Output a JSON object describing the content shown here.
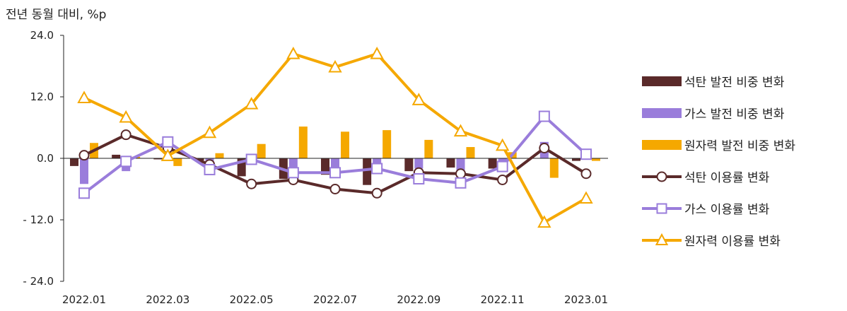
{
  "chart_data": {
    "type": "bar+line",
    "ylabel": "전년 동월 대비, %p",
    "ylim": [
      -24,
      24
    ],
    "yticks": [
      "24.0",
      "12.0",
      "0.0",
      "- 12.0",
      "- 24.0"
    ],
    "ytick_values": [
      24,
      12,
      0,
      -12,
      -24
    ],
    "categories": [
      "2022.01",
      "2022.02",
      "2022.03",
      "2022.04",
      "2022.05",
      "2022.06",
      "2022.07",
      "2022.08",
      "2022.09",
      "2022.10",
      "2022.11",
      "2022.12",
      "2023.01"
    ],
    "xtick_labels": [
      "2022.01",
      "",
      "2022.03",
      "",
      "2022.05",
      "",
      "2022.07",
      "",
      "2022.09",
      "",
      "2022.11",
      "",
      "2023.01"
    ],
    "bar_series": [
      {
        "name": "석탄 발전 비중 변화",
        "color": "#5a2a2a",
        "values": [
          -1.5,
          0.7,
          -0.2,
          -0.4,
          -3.5,
          -4.0,
          -3.2,
          -5.2,
          -2.5,
          -1.8,
          -2.0,
          0.0,
          -0.5
        ]
      },
      {
        "name": "가스 발전 비중 변화",
        "color": "#9a7ddb",
        "values": [
          -5.0,
          -2.5,
          0.3,
          -2.0,
          -1.2,
          -1.8,
          -2.2,
          -2.0,
          -2.0,
          -3.0,
          -0.6,
          3.2,
          0.4
        ]
      },
      {
        "name": "원자력 발전 비중 변화",
        "color": "#f5a800",
        "values": [
          3.0,
          0.3,
          -1.5,
          1.0,
          2.8,
          6.2,
          5.2,
          5.5,
          3.6,
          2.2,
          1.2,
          -3.8,
          -0.5
        ]
      }
    ],
    "line_series": [
      {
        "name": "석탄 이용률 변화",
        "color": "#5a2a2a",
        "marker": "circle",
        "values": [
          0.6,
          4.6,
          2.0,
          -1.2,
          -5.0,
          -4.2,
          -6.0,
          -6.8,
          -2.8,
          -3.0,
          -4.2,
          2.0,
          -3.0
        ]
      },
      {
        "name": "가스 이용률 변화",
        "color": "#9a7ddb",
        "marker": "square",
        "values": [
          -6.8,
          -0.6,
          3.2,
          -2.2,
          -0.2,
          -2.8,
          -2.8,
          -2.0,
          -4.0,
          -4.8,
          -1.6,
          8.2,
          0.8
        ]
      },
      {
        "name": "원자력 이용률 변화",
        "color": "#f5a800",
        "marker": "triangle",
        "values": [
          11.8,
          8.0,
          0.5,
          5.0,
          10.6,
          20.4,
          17.8,
          20.4,
          11.4,
          5.3,
          2.5,
          -12.5,
          -7.8
        ]
      }
    ],
    "legend_position": "right",
    "grid": false
  }
}
